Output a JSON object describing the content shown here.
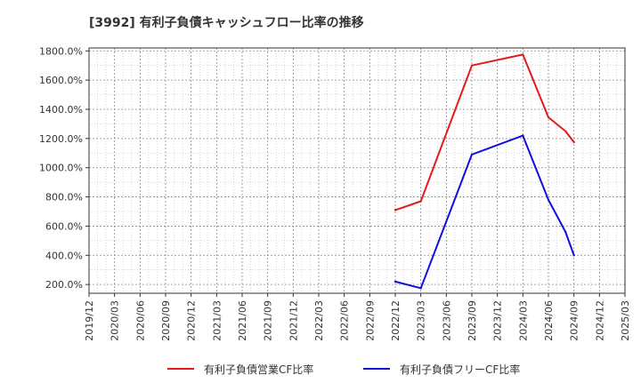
{
  "chart_data": {
    "type": "line",
    "title": "[3992]  有利子負債キャッシュフロー比率の推移",
    "xlabel": "",
    "ylabel": "",
    "ylim": [
      140,
      1820
    ],
    "x_categories": [
      "2019/12",
      "2020/03",
      "2020/06",
      "2020/09",
      "2020/12",
      "2021/03",
      "2021/06",
      "2021/09",
      "2021/12",
      "2022/03",
      "2022/06",
      "2022/09",
      "2022/12",
      "2023/03",
      "2023/06",
      "2023/09",
      "2023/12",
      "2024/03",
      "2024/06",
      "2024/09",
      "2024/12",
      "2025/03"
    ],
    "y_ticks": [
      200,
      400,
      600,
      800,
      1000,
      1200,
      1400,
      1600,
      1800
    ],
    "y_tick_labels": [
      "200.0%",
      "400.0%",
      "600.0%",
      "800.0%",
      "1000.0%",
      "1200.0%",
      "1400.0%",
      "1600.0%",
      "1800.0%"
    ],
    "grid": true,
    "legend_position": "bottom",
    "series": [
      {
        "name": "有利子負債営業CF比率",
        "color": "#e41a1c",
        "points": [
          {
            "x": 12,
            "y": 710
          },
          {
            "x": 13,
            "y": 770
          },
          {
            "x": 15,
            "y": 1700
          },
          {
            "x": 17,
            "y": 1775
          },
          {
            "x": 18,
            "y": 1345
          },
          {
            "x": 18.67,
            "y": 1250
          },
          {
            "x": 19,
            "y": 1175
          }
        ]
      },
      {
        "name": "有利子負債フリーCF比率",
        "color": "#1010dd",
        "points": [
          {
            "x": 12,
            "y": 220
          },
          {
            "x": 13,
            "y": 175
          },
          {
            "x": 15,
            "y": 1090
          },
          {
            "x": 17,
            "y": 1220
          },
          {
            "x": 18,
            "y": 780
          },
          {
            "x": 18.67,
            "y": 560
          },
          {
            "x": 19,
            "y": 400
          }
        ]
      }
    ]
  }
}
